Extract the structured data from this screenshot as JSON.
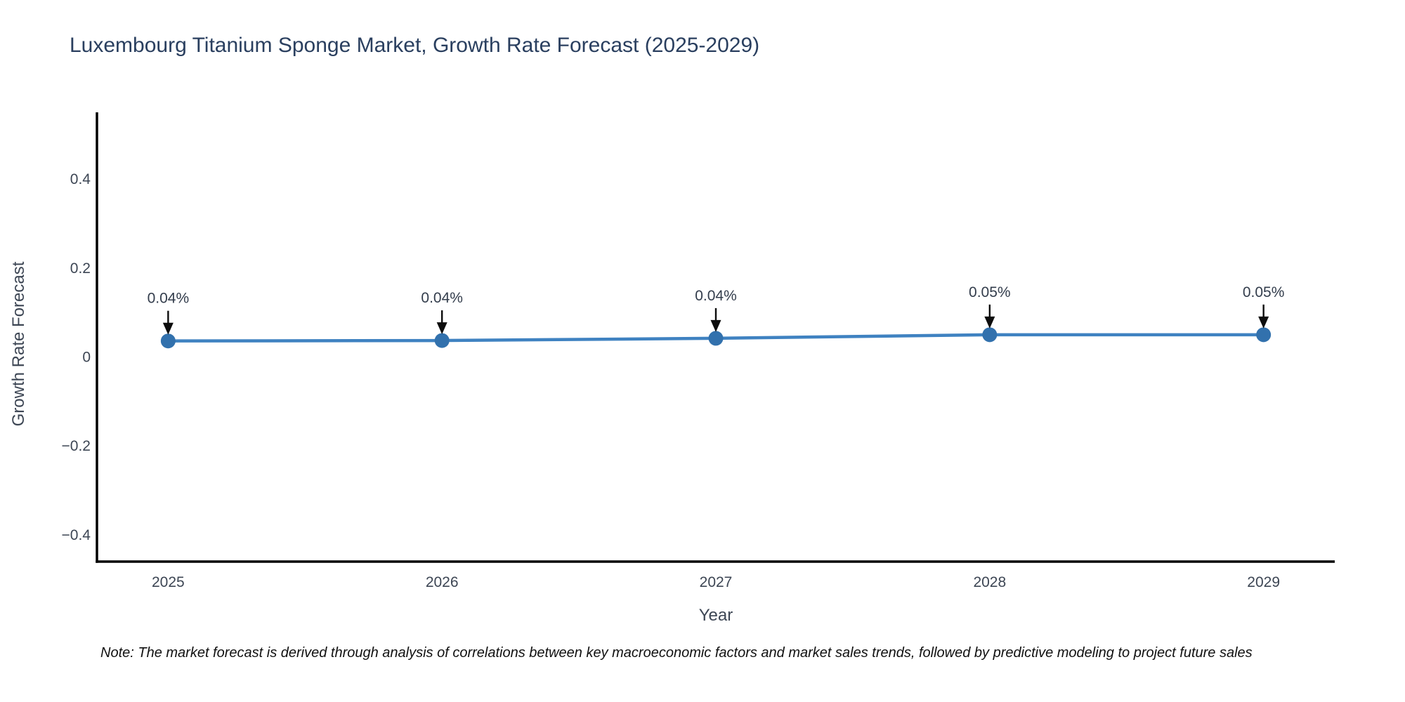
{
  "chart_data": {
    "type": "line",
    "title": "Luxembourg Titanium Sponge Market, Growth Rate Forecast (2025-2029)",
    "xlabel": "Year",
    "ylabel": "Growth Rate Forecast",
    "x": [
      2025,
      2026,
      2027,
      2028,
      2029
    ],
    "series": [
      {
        "name": "Growth Rate Forecast",
        "values": [
          0.036,
          0.037,
          0.042,
          0.05,
          0.05
        ],
        "point_labels": [
          "0.04%",
          "0.04%",
          "0.04%",
          "0.05%",
          "0.05%"
        ]
      }
    ],
    "xtick_labels": [
      "2025",
      "2026",
      "2027",
      "2028",
      "2029"
    ],
    "yticks": [
      0.4,
      0.2,
      0,
      -0.2,
      -0.4
    ],
    "ytick_labels": [
      "0.4",
      "0.2",
      "0",
      "−0.2",
      "−0.4"
    ],
    "xlim": [
      2024.74,
      2029.26
    ],
    "ylim": [
      -0.46,
      0.55
    ],
    "grid": false,
    "legend": "none",
    "colors": {
      "line": "#3f82c1",
      "marker": "#3271ad",
      "axis": "#000000",
      "title": "#2a3f5f",
      "tick_label": "#3d4654",
      "axis_title": "#3d4654",
      "annotation_text": "#333d4c",
      "annotation_arrow": "#0d0d0d"
    }
  },
  "note": {
    "text": "Note: The market forecast is derived through analysis of correlations between key macroeconomic factors and market sales trends, followed by predictive modeling to project future sales"
  }
}
